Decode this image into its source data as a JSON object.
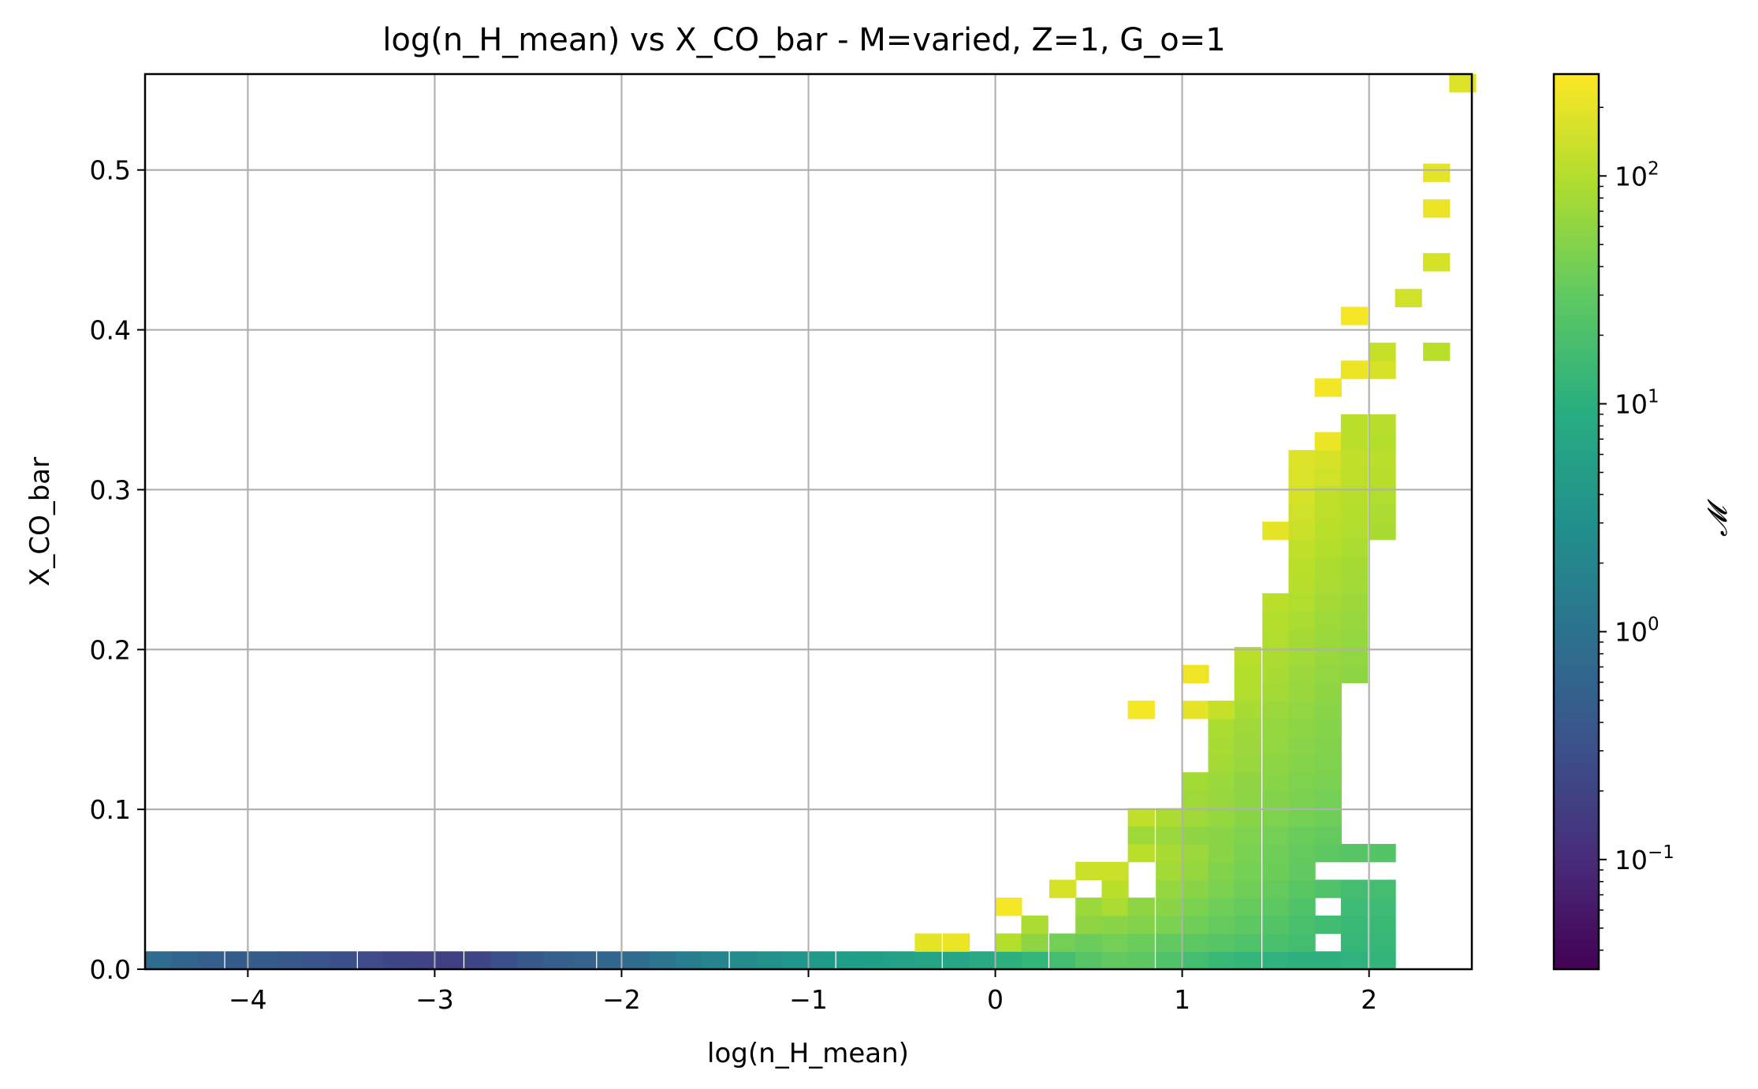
{
  "chart_data": {
    "type": "heatmap",
    "title": "log(n_H_mean) vs X_CO_bar - M=varied, Z=1, G_o=1",
    "xlabel": "log(n_H_mean)",
    "ylabel": "X_CO_bar",
    "xlim": [
      -4.55,
      2.55
    ],
    "ylim": [
      0.0,
      0.56
    ],
    "x_ticks": [
      -4,
      -3,
      -2,
      -1,
      0,
      1,
      2
    ],
    "x_tick_labels": [
      "−4",
      "−3",
      "−2",
      "−1",
      "0",
      "1",
      "2"
    ],
    "y_ticks": [
      0.0,
      0.1,
      0.2,
      0.3,
      0.4,
      0.5
    ],
    "y_tick_labels": [
      "0.0",
      "0.1",
      "0.2",
      "0.3",
      "0.4",
      "0.5"
    ],
    "grid": true,
    "bin_width_x": 0.142,
    "bin_height_y": 0.0112,
    "colorbar": {
      "label": "𝓜",
      "scale": "log",
      "vmin": 0.033,
      "vmax": 280,
      "colormap": "viridis",
      "ticks": [
        0.1,
        1,
        10,
        100
      ],
      "tick_labels": [
        {
          "base": "10",
          "exp": "−1"
        },
        {
          "base": "10",
          "exp": "0"
        },
        {
          "base": "10",
          "exp": "1"
        },
        {
          "base": "10",
          "exp": "2"
        }
      ]
    },
    "cells": [
      {
        "x": -4.48,
        "y": 0.0056,
        "v": 0.8
      },
      {
        "x": -4.34,
        "y": 0.0056,
        "v": 0.6
      },
      {
        "x": -4.2,
        "y": 0.0056,
        "v": 0.5
      },
      {
        "x": -4.05,
        "y": 0.0056,
        "v": 0.45
      },
      {
        "x": -3.91,
        "y": 0.0056,
        "v": 0.45
      },
      {
        "x": -3.77,
        "y": 0.0056,
        "v": 0.4
      },
      {
        "x": -3.63,
        "y": 0.0056,
        "v": 0.35
      },
      {
        "x": -3.49,
        "y": 0.0056,
        "v": 0.3
      },
      {
        "x": -3.34,
        "y": 0.0056,
        "v": 0.25
      },
      {
        "x": -3.2,
        "y": 0.0056,
        "v": 0.22
      },
      {
        "x": -3.06,
        "y": 0.0056,
        "v": 0.2
      },
      {
        "x": -2.92,
        "y": 0.0056,
        "v": 0.18
      },
      {
        "x": -2.77,
        "y": 0.0056,
        "v": 0.22
      },
      {
        "x": -2.63,
        "y": 0.0056,
        "v": 0.3
      },
      {
        "x": -2.49,
        "y": 0.0056,
        "v": 0.4
      },
      {
        "x": -2.35,
        "y": 0.0056,
        "v": 0.5
      },
      {
        "x": -2.21,
        "y": 0.0056,
        "v": 0.55
      },
      {
        "x": -2.06,
        "y": 0.0056,
        "v": 0.65
      },
      {
        "x": -1.92,
        "y": 0.0056,
        "v": 0.8
      },
      {
        "x": -1.78,
        "y": 0.0056,
        "v": 1.1
      },
      {
        "x": -1.64,
        "y": 0.0056,
        "v": 1.5
      },
      {
        "x": -1.5,
        "y": 0.0056,
        "v": 2.0
      },
      {
        "x": -1.35,
        "y": 0.0056,
        "v": 2.6
      },
      {
        "x": -1.21,
        "y": 0.0056,
        "v": 3.2
      },
      {
        "x": -1.07,
        "y": 0.0056,
        "v": 3.8
      },
      {
        "x": -0.93,
        "y": 0.0056,
        "v": 4.5
      },
      {
        "x": -0.78,
        "y": 0.0056,
        "v": 5.0
      },
      {
        "x": -0.64,
        "y": 0.0056,
        "v": 5.5
      },
      {
        "x": -0.5,
        "y": 0.0056,
        "v": 6.0
      },
      {
        "x": -0.36,
        "y": 0.0056,
        "v": 6.5
      },
      {
        "x": -0.21,
        "y": 0.0056,
        "v": 7.0
      },
      {
        "x": -0.07,
        "y": 0.0056,
        "v": 8.0
      },
      {
        "x": 0.07,
        "y": 0.0056,
        "v": 10
      },
      {
        "x": 0.21,
        "y": 0.0056,
        "v": 13
      },
      {
        "x": 0.36,
        "y": 0.0056,
        "v": 18
      },
      {
        "x": 0.5,
        "y": 0.0056,
        "v": 25
      },
      {
        "x": 0.64,
        "y": 0.0056,
        "v": 30
      },
      {
        "x": 0.78,
        "y": 0.0056,
        "v": 28
      },
      {
        "x": 0.93,
        "y": 0.0056,
        "v": 22
      },
      {
        "x": 1.07,
        "y": 0.0056,
        "v": 18
      },
      {
        "x": 1.21,
        "y": 0.0056,
        "v": 15
      },
      {
        "x": 1.35,
        "y": 0.0056,
        "v": 13
      },
      {
        "x": 1.5,
        "y": 0.0056,
        "v": 11
      },
      {
        "x": 1.64,
        "y": 0.0056,
        "v": 10
      },
      {
        "x": 1.78,
        "y": 0.0056,
        "v": 10
      },
      {
        "x": 1.92,
        "y": 0.0056,
        "v": 11
      },
      {
        "x": 2.07,
        "y": 0.0056,
        "v": 12
      },
      {
        "x": -0.36,
        "y": 0.0168,
        "v": 200
      },
      {
        "x": -0.21,
        "y": 0.0168,
        "v": 220
      },
      {
        "x": 0.07,
        "y": 0.0168,
        "v": 100
      },
      {
        "x": 0.21,
        "y": 0.0168,
        "v": 60
      },
      {
        "x": 0.36,
        "y": 0.0168,
        "v": 40
      },
      {
        "x": 0.5,
        "y": 0.0168,
        "v": 35
      },
      {
        "x": 0.64,
        "y": 0.0168,
        "v": 40
      },
      {
        "x": 0.78,
        "y": 0.0168,
        "v": 35
      },
      {
        "x": 0.93,
        "y": 0.0168,
        "v": 30
      },
      {
        "x": 1.07,
        "y": 0.0168,
        "v": 28
      },
      {
        "x": 1.21,
        "y": 0.0168,
        "v": 25
      },
      {
        "x": 1.35,
        "y": 0.0168,
        "v": 22
      },
      {
        "x": 1.5,
        "y": 0.0168,
        "v": 20
      },
      {
        "x": 1.64,
        "y": 0.0168,
        "v": 18
      },
      {
        "x": 1.92,
        "y": 0.0168,
        "v": 14
      },
      {
        "x": 2.07,
        "y": 0.0168,
        "v": 14
      },
      {
        "x": 0.21,
        "y": 0.028,
        "v": 90
      },
      {
        "x": 0.5,
        "y": 0.028,
        "v": 60
      },
      {
        "x": 0.64,
        "y": 0.028,
        "v": 55
      },
      {
        "x": 0.78,
        "y": 0.028,
        "v": 50
      },
      {
        "x": 0.93,
        "y": 0.028,
        "v": 45
      },
      {
        "x": 1.07,
        "y": 0.028,
        "v": 38
      },
      {
        "x": 1.21,
        "y": 0.028,
        "v": 32
      },
      {
        "x": 1.35,
        "y": 0.028,
        "v": 28
      },
      {
        "x": 1.5,
        "y": 0.028,
        "v": 24
      },
      {
        "x": 1.64,
        "y": 0.028,
        "v": 20
      },
      {
        "x": 1.78,
        "y": 0.028,
        "v": 17
      },
      {
        "x": 1.92,
        "y": 0.028,
        "v": 15
      },
      {
        "x": 2.07,
        "y": 0.028,
        "v": 15
      },
      {
        "x": 0.07,
        "y": 0.0392,
        "v": 250
      },
      {
        "x": 0.5,
        "y": 0.0392,
        "v": 70
      },
      {
        "x": 0.64,
        "y": 0.0392,
        "v": 90
      },
      {
        "x": 0.78,
        "y": 0.0392,
        "v": 60
      },
      {
        "x": 0.93,
        "y": 0.0392,
        "v": 55
      },
      {
        "x": 1.07,
        "y": 0.0392,
        "v": 45
      },
      {
        "x": 1.21,
        "y": 0.0392,
        "v": 38
      },
      {
        "x": 1.35,
        "y": 0.0392,
        "v": 32
      },
      {
        "x": 1.5,
        "y": 0.0392,
        "v": 28
      },
      {
        "x": 1.64,
        "y": 0.0392,
        "v": 22
      },
      {
        "x": 1.92,
        "y": 0.0392,
        "v": 16
      },
      {
        "x": 2.07,
        "y": 0.0392,
        "v": 16
      },
      {
        "x": 0.36,
        "y": 0.0504,
        "v": 160
      },
      {
        "x": 0.64,
        "y": 0.0504,
        "v": 110
      },
      {
        "x": 0.93,
        "y": 0.0504,
        "v": 65
      },
      {
        "x": 1.07,
        "y": 0.0504,
        "v": 55
      },
      {
        "x": 1.21,
        "y": 0.0504,
        "v": 45
      },
      {
        "x": 1.35,
        "y": 0.0504,
        "v": 38
      },
      {
        "x": 1.5,
        "y": 0.0504,
        "v": 32
      },
      {
        "x": 1.64,
        "y": 0.0504,
        "v": 26
      },
      {
        "x": 1.78,
        "y": 0.0504,
        "v": 22
      },
      {
        "x": 1.92,
        "y": 0.0504,
        "v": 18
      },
      {
        "x": 2.07,
        "y": 0.0504,
        "v": 18
      },
      {
        "x": 0.5,
        "y": 0.0616,
        "v": 140
      },
      {
        "x": 0.64,
        "y": 0.0616,
        "v": 140
      },
      {
        "x": 0.93,
        "y": 0.0616,
        "v": 80
      },
      {
        "x": 1.07,
        "y": 0.0616,
        "v": 65
      },
      {
        "x": 1.21,
        "y": 0.0616,
        "v": 50
      },
      {
        "x": 1.35,
        "y": 0.0616,
        "v": 42
      },
      {
        "x": 1.5,
        "y": 0.0616,
        "v": 36
      },
      {
        "x": 1.64,
        "y": 0.0616,
        "v": 30
      },
      {
        "x": 0.78,
        "y": 0.0728,
        "v": 110
      },
      {
        "x": 0.93,
        "y": 0.0728,
        "v": 85
      },
      {
        "x": 1.07,
        "y": 0.0728,
        "v": 70
      },
      {
        "x": 1.21,
        "y": 0.0728,
        "v": 55
      },
      {
        "x": 1.35,
        "y": 0.0728,
        "v": 45
      },
      {
        "x": 1.5,
        "y": 0.0728,
        "v": 38
      },
      {
        "x": 1.64,
        "y": 0.0728,
        "v": 32
      },
      {
        "x": 1.78,
        "y": 0.0728,
        "v": 28
      },
      {
        "x": 1.92,
        "y": 0.0728,
        "v": 25
      },
      {
        "x": 2.07,
        "y": 0.0728,
        "v": 24
      },
      {
        "x": 0.78,
        "y": 0.084,
        "v": 75
      },
      {
        "x": 0.93,
        "y": 0.084,
        "v": 70
      },
      {
        "x": 1.07,
        "y": 0.084,
        "v": 60
      },
      {
        "x": 1.21,
        "y": 0.084,
        "v": 55
      },
      {
        "x": 1.35,
        "y": 0.084,
        "v": 48
      },
      {
        "x": 1.5,
        "y": 0.084,
        "v": 40
      },
      {
        "x": 1.64,
        "y": 0.084,
        "v": 35
      },
      {
        "x": 1.78,
        "y": 0.084,
        "v": 32
      },
      {
        "x": 0.78,
        "y": 0.0952,
        "v": 120
      },
      {
        "x": 0.93,
        "y": 0.0952,
        "v": 90
      },
      {
        "x": 1.07,
        "y": 0.0952,
        "v": 75
      },
      {
        "x": 1.21,
        "y": 0.0952,
        "v": 65
      },
      {
        "x": 1.35,
        "y": 0.0952,
        "v": 55
      },
      {
        "x": 1.5,
        "y": 0.0952,
        "v": 48
      },
      {
        "x": 1.64,
        "y": 0.0952,
        "v": 42
      },
      {
        "x": 1.78,
        "y": 0.0952,
        "v": 38
      },
      {
        "x": 1.07,
        "y": 0.1064,
        "v": 75
      },
      {
        "x": 1.21,
        "y": 0.1064,
        "v": 68
      },
      {
        "x": 1.35,
        "y": 0.1064,
        "v": 58
      },
      {
        "x": 1.5,
        "y": 0.1064,
        "v": 50
      },
      {
        "x": 1.64,
        "y": 0.1064,
        "v": 45
      },
      {
        "x": 1.78,
        "y": 0.1064,
        "v": 40
      },
      {
        "x": 1.07,
        "y": 0.1176,
        "v": 80
      },
      {
        "x": 1.21,
        "y": 0.1176,
        "v": 70
      },
      {
        "x": 1.35,
        "y": 0.1176,
        "v": 60
      },
      {
        "x": 1.5,
        "y": 0.1176,
        "v": 55
      },
      {
        "x": 1.64,
        "y": 0.1176,
        "v": 48
      },
      {
        "x": 1.78,
        "y": 0.1176,
        "v": 45
      },
      {
        "x": 1.21,
        "y": 0.1288,
        "v": 80
      },
      {
        "x": 1.35,
        "y": 0.1288,
        "v": 68
      },
      {
        "x": 1.5,
        "y": 0.1288,
        "v": 58
      },
      {
        "x": 1.64,
        "y": 0.1288,
        "v": 52
      },
      {
        "x": 1.78,
        "y": 0.1288,
        "v": 48
      },
      {
        "x": 1.21,
        "y": 0.14,
        "v": 85
      },
      {
        "x": 1.35,
        "y": 0.14,
        "v": 72
      },
      {
        "x": 1.5,
        "y": 0.14,
        "v": 62
      },
      {
        "x": 1.64,
        "y": 0.14,
        "v": 55
      },
      {
        "x": 1.78,
        "y": 0.14,
        "v": 50
      },
      {
        "x": 1.21,
        "y": 0.1512,
        "v": 88
      },
      {
        "x": 1.35,
        "y": 0.1512,
        "v": 75
      },
      {
        "x": 1.5,
        "y": 0.1512,
        "v": 65
      },
      {
        "x": 1.64,
        "y": 0.1512,
        "v": 58
      },
      {
        "x": 1.78,
        "y": 0.1512,
        "v": 52
      },
      {
        "x": 0.78,
        "y": 0.1624,
        "v": 250
      },
      {
        "x": 1.07,
        "y": 0.1624,
        "v": 200
      },
      {
        "x": 1.21,
        "y": 0.1624,
        "v": 130
      },
      {
        "x": 1.35,
        "y": 0.1624,
        "v": 85
      },
      {
        "x": 1.5,
        "y": 0.1624,
        "v": 70
      },
      {
        "x": 1.64,
        "y": 0.1624,
        "v": 62
      },
      {
        "x": 1.78,
        "y": 0.1624,
        "v": 55
      },
      {
        "x": 1.07,
        "y": 0.1848,
        "v": 230
      },
      {
        "x": 1.35,
        "y": 0.1848,
        "v": 100
      },
      {
        "x": 1.5,
        "y": 0.1848,
        "v": 85
      },
      {
        "x": 1.64,
        "y": 0.1848,
        "v": 72
      },
      {
        "x": 1.78,
        "y": 0.1848,
        "v": 62
      },
      {
        "x": 1.92,
        "y": 0.1848,
        "v": 58
      },
      {
        "x": 1.35,
        "y": 0.1736,
        "v": 95
      },
      {
        "x": 1.5,
        "y": 0.1736,
        "v": 80
      },
      {
        "x": 1.64,
        "y": 0.1736,
        "v": 68
      },
      {
        "x": 1.78,
        "y": 0.1736,
        "v": 60
      },
      {
        "x": 1.35,
        "y": 0.196,
        "v": 110
      },
      {
        "x": 1.5,
        "y": 0.196,
        "v": 90
      },
      {
        "x": 1.64,
        "y": 0.196,
        "v": 78
      },
      {
        "x": 1.78,
        "y": 0.196,
        "v": 68
      },
      {
        "x": 1.92,
        "y": 0.196,
        "v": 62
      },
      {
        "x": 1.5,
        "y": 0.2072,
        "v": 95
      },
      {
        "x": 1.64,
        "y": 0.2072,
        "v": 82
      },
      {
        "x": 1.78,
        "y": 0.2072,
        "v": 70
      },
      {
        "x": 1.92,
        "y": 0.2072,
        "v": 65
      },
      {
        "x": 1.5,
        "y": 0.2184,
        "v": 100
      },
      {
        "x": 1.64,
        "y": 0.2184,
        "v": 88
      },
      {
        "x": 1.78,
        "y": 0.2184,
        "v": 75
      },
      {
        "x": 1.92,
        "y": 0.2184,
        "v": 68
      },
      {
        "x": 1.5,
        "y": 0.2296,
        "v": 110
      },
      {
        "x": 1.64,
        "y": 0.2296,
        "v": 95
      },
      {
        "x": 1.78,
        "y": 0.2296,
        "v": 80
      },
      {
        "x": 1.92,
        "y": 0.2296,
        "v": 72
      },
      {
        "x": 1.64,
        "y": 0.2408,
        "v": 105
      },
      {
        "x": 1.78,
        "y": 0.2408,
        "v": 88
      },
      {
        "x": 1.92,
        "y": 0.2408,
        "v": 78
      },
      {
        "x": 1.64,
        "y": 0.252,
        "v": 110
      },
      {
        "x": 1.78,
        "y": 0.252,
        "v": 92
      },
      {
        "x": 1.92,
        "y": 0.252,
        "v": 82
      },
      {
        "x": 1.64,
        "y": 0.2632,
        "v": 120
      },
      {
        "x": 1.78,
        "y": 0.2632,
        "v": 100
      },
      {
        "x": 1.92,
        "y": 0.2632,
        "v": 88
      },
      {
        "x": 1.5,
        "y": 0.2744,
        "v": 200
      },
      {
        "x": 1.64,
        "y": 0.2744,
        "v": 140
      },
      {
        "x": 1.78,
        "y": 0.2744,
        "v": 110
      },
      {
        "x": 1.92,
        "y": 0.2744,
        "v": 95
      },
      {
        "x": 2.07,
        "y": 0.2744,
        "v": 85
      },
      {
        "x": 1.64,
        "y": 0.2856,
        "v": 150
      },
      {
        "x": 1.78,
        "y": 0.2856,
        "v": 115
      },
      {
        "x": 1.92,
        "y": 0.2856,
        "v": 100
      },
      {
        "x": 2.07,
        "y": 0.2856,
        "v": 90
      },
      {
        "x": 1.64,
        "y": 0.2968,
        "v": 160
      },
      {
        "x": 1.78,
        "y": 0.2968,
        "v": 120
      },
      {
        "x": 1.92,
        "y": 0.2968,
        "v": 105
      },
      {
        "x": 2.07,
        "y": 0.2968,
        "v": 95
      },
      {
        "x": 1.64,
        "y": 0.308,
        "v": 170
      },
      {
        "x": 1.78,
        "y": 0.308,
        "v": 150
      },
      {
        "x": 1.64,
        "y": 0.3192,
        "v": 180
      },
      {
        "x": 1.78,
        "y": 0.3192,
        "v": 160
      },
      {
        "x": 1.78,
        "y": 0.3304,
        "v": 220
      },
      {
        "x": 1.92,
        "y": 0.3304,
        "v": 110
      },
      {
        "x": 2.07,
        "y": 0.3304,
        "v": 100
      },
      {
        "x": 1.92,
        "y": 0.3192,
        "v": 120
      },
      {
        "x": 2.07,
        "y": 0.3192,
        "v": 110
      },
      {
        "x": 1.92,
        "y": 0.308,
        "v": 115
      },
      {
        "x": 2.07,
        "y": 0.308,
        "v": 105
      },
      {
        "x": 1.92,
        "y": 0.3416,
        "v": 110
      },
      {
        "x": 2.07,
        "y": 0.3416,
        "v": 105
      },
      {
        "x": 1.78,
        "y": 0.364,
        "v": 240
      },
      {
        "x": 1.92,
        "y": 0.3752,
        "v": 220
      },
      {
        "x": 2.07,
        "y": 0.3752,
        "v": 160
      },
      {
        "x": 2.07,
        "y": 0.3864,
        "v": 130
      },
      {
        "x": 2.36,
        "y": 0.3864,
        "v": 110
      },
      {
        "x": 1.92,
        "y": 0.4088,
        "v": 250
      },
      {
        "x": 2.21,
        "y": 0.42,
        "v": 150
      },
      {
        "x": 2.36,
        "y": 0.4424,
        "v": 160
      },
      {
        "x": 2.36,
        "y": 0.476,
        "v": 220
      },
      {
        "x": 2.36,
        "y": 0.4984,
        "v": 200
      },
      {
        "x": 2.5,
        "y": 0.5544,
        "v": 180
      }
    ]
  }
}
